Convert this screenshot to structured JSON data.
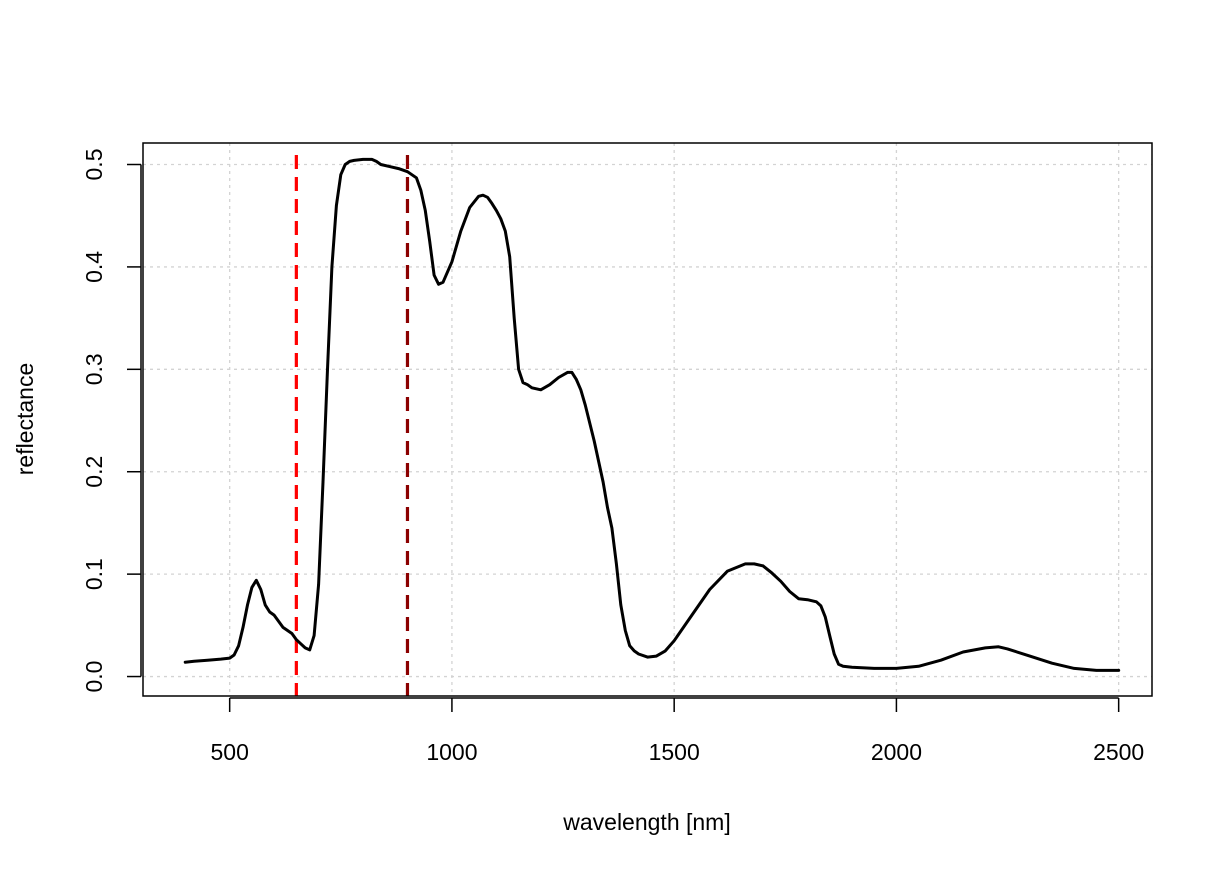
{
  "chart_data": {
    "type": "line",
    "title": "",
    "xlabel": "wavelength [nm]",
    "ylabel": "reflectance",
    "xlim": [
      305,
      2575
    ],
    "ylim": [
      -0.019,
      0.521
    ],
    "grid": true,
    "x_ticks": [
      500,
      1000,
      1500,
      2000,
      2500
    ],
    "x_tick_labels": [
      "500",
      "1000",
      "1500",
      "2000",
      "2500"
    ],
    "y_ticks": [
      0.0,
      0.1,
      0.2,
      0.3,
      0.4,
      0.5
    ],
    "y_tick_labels": [
      "0.0",
      "0.1",
      "0.2",
      "0.3",
      "0.4",
      "0.5"
    ],
    "series": [
      {
        "color": "#000000",
        "x": [
          400,
          420,
          450,
          480,
          500,
          510,
          520,
          530,
          540,
          550,
          560,
          570,
          580,
          590,
          600,
          620,
          640,
          650,
          660,
          670,
          680,
          690,
          700,
          710,
          720,
          730,
          740,
          750,
          760,
          770,
          780,
          800,
          820,
          830,
          840,
          860,
          880,
          900,
          920,
          930,
          940,
          950,
          960,
          970,
          980,
          1000,
          1020,
          1040,
          1060,
          1070,
          1080,
          1090,
          1100,
          1110,
          1120,
          1130,
          1140,
          1150,
          1160,
          1170,
          1180,
          1200,
          1220,
          1240,
          1260,
          1270,
          1280,
          1290,
          1300,
          1320,
          1340,
          1350,
          1360,
          1370,
          1380,
          1390,
          1400,
          1410,
          1420,
          1440,
          1460,
          1480,
          1500,
          1540,
          1580,
          1620,
          1660,
          1680,
          1700,
          1720,
          1740,
          1760,
          1780,
          1800,
          1820,
          1830,
          1840,
          1850,
          1860,
          1870,
          1880,
          1900,
          1950,
          2000,
          2050,
          2100,
          2150,
          2200,
          2230,
          2250,
          2300,
          2350,
          2400,
          2450,
          2500
        ],
        "y": [
          0.014,
          0.015,
          0.016,
          0.017,
          0.018,
          0.021,
          0.03,
          0.048,
          0.07,
          0.087,
          0.094,
          0.085,
          0.07,
          0.063,
          0.06,
          0.048,
          0.042,
          0.036,
          0.032,
          0.028,
          0.026,
          0.04,
          0.09,
          0.19,
          0.3,
          0.4,
          0.46,
          0.49,
          0.5,
          0.503,
          0.504,
          0.505,
          0.505,
          0.503,
          0.5,
          0.498,
          0.496,
          0.493,
          0.487,
          0.475,
          0.455,
          0.425,
          0.392,
          0.383,
          0.385,
          0.405,
          0.435,
          0.458,
          0.469,
          0.47,
          0.468,
          0.462,
          0.455,
          0.447,
          0.435,
          0.41,
          0.35,
          0.3,
          0.287,
          0.285,
          0.282,
          0.28,
          0.285,
          0.292,
          0.297,
          0.297,
          0.29,
          0.28,
          0.265,
          0.23,
          0.19,
          0.165,
          0.145,
          0.11,
          0.07,
          0.045,
          0.03,
          0.025,
          0.022,
          0.019,
          0.02,
          0.025,
          0.035,
          0.06,
          0.085,
          0.103,
          0.11,
          0.11,
          0.108,
          0.101,
          0.093,
          0.083,
          0.076,
          0.075,
          0.073,
          0.069,
          0.058,
          0.04,
          0.022,
          0.012,
          0.01,
          0.009,
          0.008,
          0.008,
          0.01,
          0.016,
          0.024,
          0.028,
          0.029,
          0.027,
          0.02,
          0.013,
          0.008,
          0.006,
          0.006
        ]
      }
    ],
    "reference_lines": [
      {
        "x": 650,
        "color": "#ff0000",
        "style": "dashed"
      },
      {
        "x": 900,
        "color": "#8b0000",
        "style": "dashed"
      }
    ]
  }
}
